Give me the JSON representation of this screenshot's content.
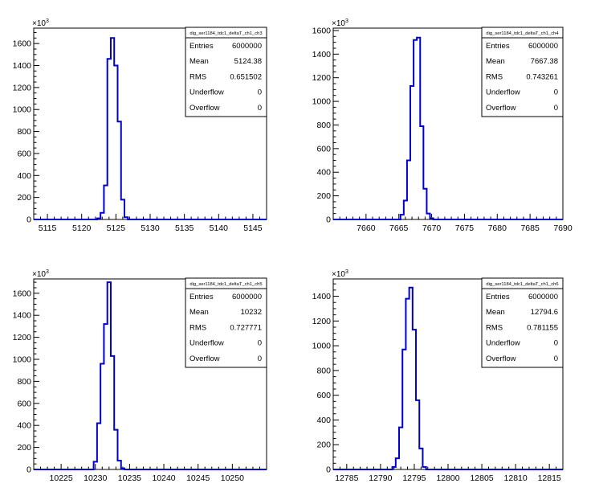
{
  "chart_data": [
    {
      "type": "bar",
      "title": "",
      "multiplier": "×10",
      "exponent": "3",
      "xlim": [
        5113,
        5147
      ],
      "ylim": [
        0,
        1740
      ],
      "xticks": [
        5115,
        5120,
        5125,
        5130,
        5135,
        5140,
        5145
      ],
      "yticks": [
        0,
        200,
        400,
        600,
        800,
        1000,
        1200,
        1400,
        1600
      ],
      "bins": [
        {
          "x": 5122.5,
          "y": 10
        },
        {
          "x": 5123,
          "y": 60
        },
        {
          "x": 5123.5,
          "y": 310
        },
        {
          "x": 5124,
          "y": 1460
        },
        {
          "x": 5124.5,
          "y": 1650
        },
        {
          "x": 5125,
          "y": 1400
        },
        {
          "x": 5125.5,
          "y": 890
        },
        {
          "x": 5126,
          "y": 180
        },
        {
          "x": 5126.5,
          "y": 20
        }
      ],
      "stats": {
        "name": "dig_ser1184_tdc1_deltaT_ch1_ch3",
        "rows": [
          {
            "label": "Entries",
            "value": "6000000"
          },
          {
            "label": "Mean",
            "value": "5124.38"
          },
          {
            "label": "RMS",
            "value": "0.651502"
          },
          {
            "label": "Underflow",
            "value": "0"
          },
          {
            "label": "Overflow",
            "value": "0"
          }
        ]
      }
    },
    {
      "type": "bar",
      "title": "",
      "multiplier": "×10",
      "exponent": "3",
      "xlim": [
        7655,
        7690
      ],
      "ylim": [
        0,
        1620
      ],
      "xticks": [
        7660,
        7665,
        7670,
        7675,
        7680,
        7685,
        7690
      ],
      "yticks": [
        0,
        200,
        400,
        600,
        800,
        1000,
        1200,
        1400,
        1600
      ],
      "bins": [
        {
          "x": 7665.5,
          "y": 40
        },
        {
          "x": 7666,
          "y": 160
        },
        {
          "x": 7666.5,
          "y": 500
        },
        {
          "x": 7667,
          "y": 1130
        },
        {
          "x": 7667.5,
          "y": 1520
        },
        {
          "x": 7668,
          "y": 1540
        },
        {
          "x": 7668.5,
          "y": 790
        },
        {
          "x": 7669,
          "y": 260
        },
        {
          "x": 7669.5,
          "y": 50
        },
        {
          "x": 7670,
          "y": 10
        }
      ],
      "stats": {
        "name": "dig_ser1184_tdc1_deltaT_ch1_ch4",
        "rows": [
          {
            "label": "Entries",
            "value": "6000000"
          },
          {
            "label": "Mean",
            "value": "7667.38"
          },
          {
            "label": "RMS",
            "value": "0.743261"
          },
          {
            "label": "Underflow",
            "value": "0"
          },
          {
            "label": "Overflow",
            "value": "0"
          }
        ]
      }
    },
    {
      "type": "bar",
      "title": "",
      "multiplier": "×10",
      "exponent": "3",
      "xlim": [
        10221,
        10255
      ],
      "ylim": [
        0,
        1730
      ],
      "xticks": [
        10225,
        10230,
        10235,
        10240,
        10245,
        10250
      ],
      "yticks": [
        0,
        200,
        400,
        600,
        800,
        1000,
        1200,
        1400,
        1600
      ],
      "bins": [
        {
          "x": 10230,
          "y": 70
        },
        {
          "x": 10230.5,
          "y": 420
        },
        {
          "x": 10231,
          "y": 960
        },
        {
          "x": 10231.5,
          "y": 1320
        },
        {
          "x": 10232,
          "y": 1700
        },
        {
          "x": 10232.5,
          "y": 1030
        },
        {
          "x": 10233,
          "y": 360
        },
        {
          "x": 10233.5,
          "y": 80
        },
        {
          "x": 10234,
          "y": 10
        }
      ],
      "stats": {
        "name": "dig_ser1184_tdc1_deltaT_ch1_ch5",
        "rows": [
          {
            "label": "Entries",
            "value": "6000000"
          },
          {
            "label": "Mean",
            "value": "10232"
          },
          {
            "label": "RMS",
            "value": "0.727771"
          },
          {
            "label": "Underflow",
            "value": "0"
          },
          {
            "label": "Overflow",
            "value": "0"
          }
        ]
      }
    },
    {
      "type": "bar",
      "title": "",
      "multiplier": "×10",
      "exponent": "3",
      "xlim": [
        12783,
        12817
      ],
      "ylim": [
        0,
        1540
      ],
      "xticks": [
        12785,
        12790,
        12795,
        12800,
        12805,
        12810,
        12815
      ],
      "yticks": [
        0,
        200,
        400,
        600,
        800,
        1000,
        1200,
        1400
      ],
      "bins": [
        {
          "x": 12792,
          "y": 20
        },
        {
          "x": 12792.5,
          "y": 90
        },
        {
          "x": 12793,
          "y": 340
        },
        {
          "x": 12793.5,
          "y": 970
        },
        {
          "x": 12794,
          "y": 1380
        },
        {
          "x": 12794.5,
          "y": 1470
        },
        {
          "x": 12795,
          "y": 1130
        },
        {
          "x": 12795.5,
          "y": 560
        },
        {
          "x": 12796,
          "y": 170
        },
        {
          "x": 12796.5,
          "y": 20
        }
      ],
      "stats": {
        "name": "dig_ser1184_tdc1_deltaT_ch1_ch6",
        "rows": [
          {
            "label": "Entries",
            "value": "6000000"
          },
          {
            "label": "Mean",
            "value": "12794.6"
          },
          {
            "label": "RMS",
            "value": "0.781155"
          },
          {
            "label": "Underflow",
            "value": "0"
          },
          {
            "label": "Overflow",
            "value": "0"
          }
        ]
      }
    }
  ]
}
